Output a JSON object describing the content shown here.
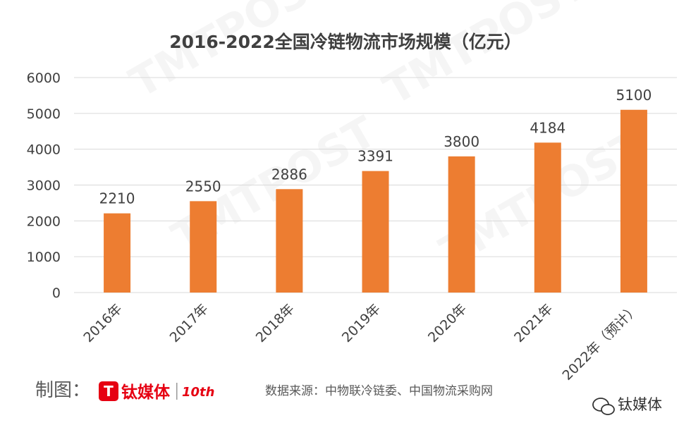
{
  "chart_data": {
    "type": "bar",
    "title": "2016-2022全国冷链物流市场规模（亿元）",
    "categories": [
      "2016年",
      "2017年",
      "2018年",
      "2019年",
      "2020年",
      "2021年",
      "2022年（预计）"
    ],
    "values": [
      2210,
      2550,
      2886,
      3391,
      3800,
      4184,
      5100
    ],
    "yticks": [
      0,
      1000,
      2000,
      3000,
      4000,
      5000,
      6000
    ],
    "ylim": [
      0,
      6000
    ],
    "xlabel": "",
    "ylabel": "",
    "grid": true,
    "legend": "none",
    "bar_color": "#ED7D31"
  },
  "footer": {
    "made_by_label": "制图：",
    "brand_name": "钛媒体",
    "anniversary_badge": "10th",
    "source_text": "数据来源：中物联冷链委、中国物流采购网"
  },
  "watermark": {
    "wechat_account": "钛媒体",
    "brand_text": "TMTPOST"
  },
  "colors": {
    "bar": "#ED7D31",
    "brand_red": "#E60012",
    "grid": "#D9D9D9",
    "text": "#404040"
  }
}
